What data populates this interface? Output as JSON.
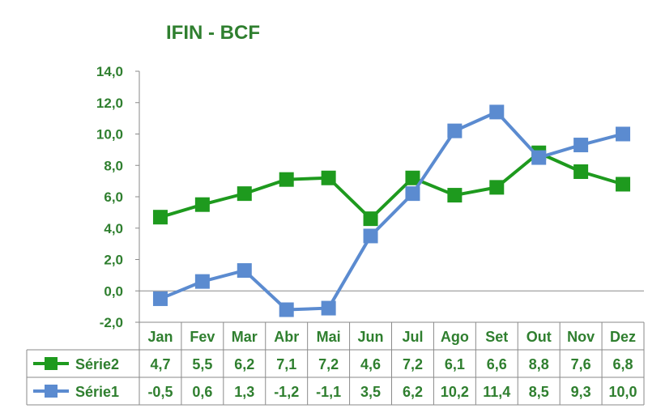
{
  "chart_data": {
    "type": "line",
    "title": "IFIN - BCF",
    "categories": [
      "Jan",
      "Fev",
      "Mar",
      "Abr",
      "Mai",
      "Jun",
      "Jul",
      "Ago",
      "Set",
      "Out",
      "Nov",
      "Dez"
    ],
    "series": [
      {
        "name": "Série2",
        "color": "#1e9a1e",
        "marker": "square",
        "values": [
          4.7,
          5.5,
          6.2,
          7.1,
          7.2,
          4.6,
          7.2,
          6.1,
          6.6,
          8.8,
          7.6,
          6.8
        ],
        "labels": [
          "4,7",
          "5,5",
          "6,2",
          "7,1",
          "7,2",
          "4,6",
          "7,2",
          "6,1",
          "6,6",
          "8,8",
          "7,6",
          "6,8"
        ]
      },
      {
        "name": "Série1",
        "color": "#5b8bd0",
        "marker": "square",
        "values": [
          -0.5,
          0.6,
          1.3,
          -1.2,
          -1.1,
          3.5,
          6.2,
          10.2,
          11.4,
          8.5,
          9.3,
          10.0
        ],
        "labels": [
          "-0,5",
          "0,6",
          "1,3",
          "-1,2",
          "-1,1",
          "3,5",
          "6,2",
          "10,2",
          "11,4",
          "8,5",
          "9,3",
          "10,0"
        ]
      }
    ],
    "ylim": [
      -2,
      14
    ],
    "yticks": [
      -2,
      0,
      2,
      4,
      6,
      8,
      10,
      12,
      14
    ],
    "ytick_labels": [
      "-2,0",
      "0,0",
      "2,0",
      "4,0",
      "6,0",
      "8,0",
      "10,0",
      "12,0",
      "14,0"
    ],
    "xlabel": "",
    "ylabel": "",
    "grid": false,
    "legend": "data-table",
    "text_color": "#2f7f2f"
  }
}
